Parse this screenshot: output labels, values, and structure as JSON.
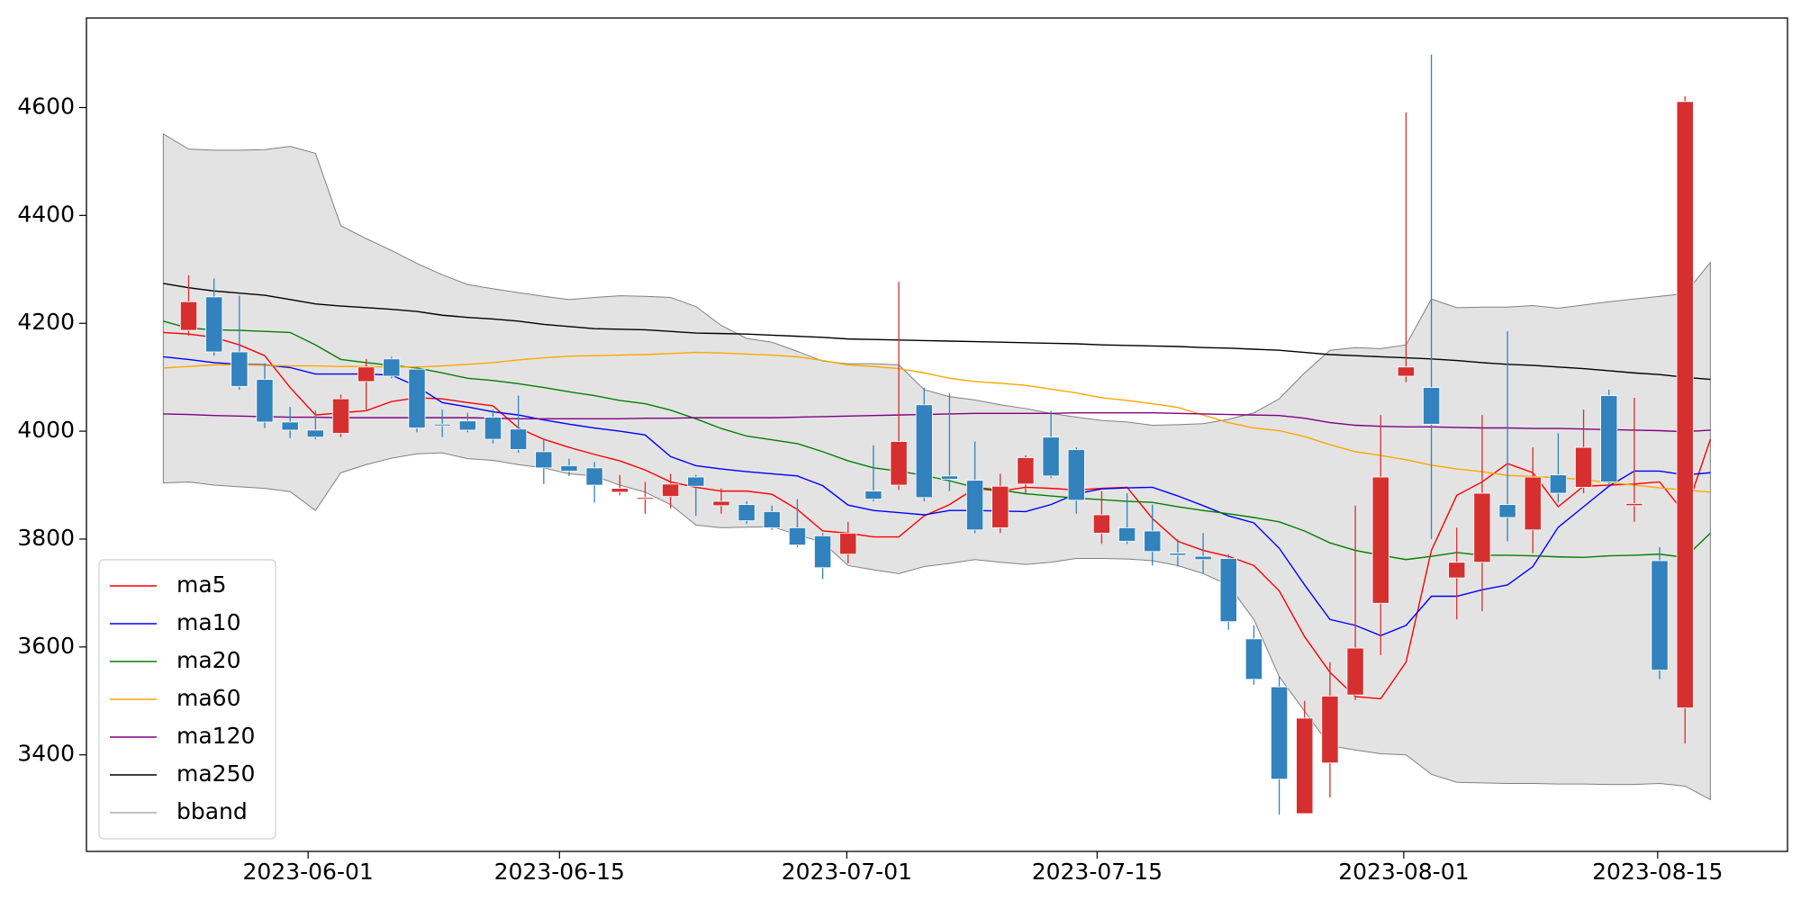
{
  "chart_data": {
    "type": "candlestick",
    "categories": [
      null,
      null,
      null,
      null,
      null,
      null,
      null,
      null,
      null,
      null,
      null,
      null,
      null,
      null,
      null,
      null,
      null,
      null,
      null,
      null,
      null,
      null,
      null,
      null,
      null,
      null,
      null,
      null,
      null,
      null,
      null,
      null,
      null,
      null,
      null,
      null,
      null,
      null,
      null,
      null,
      null,
      null,
      null,
      null,
      null,
      null,
      null,
      null,
      null,
      null,
      null,
      null,
      null,
      null,
      null,
      null,
      null,
      null,
      null,
      null,
      null,
      null
    ],
    "xlim": [
      -3.03,
      64.04
    ],
    "xticks": [
      {
        "value": 5.71,
        "label": "2023-06-01"
      },
      {
        "value": 15.62,
        "label": "2023-06-15"
      },
      {
        "value": 26.95,
        "label": "2023-07-01"
      },
      {
        "value": 36.82,
        "label": "2023-07-15"
      },
      {
        "value": 48.91,
        "label": "2023-08-01"
      },
      {
        "value": 58.92,
        "label": "2023-08-15"
      }
    ],
    "ylim": [
      3221,
      4766
    ],
    "yticks": [
      3400,
      3600,
      3800,
      4000,
      4200,
      4400,
      4600
    ],
    "up_color": "#d62f2f",
    "down_color": "#3182bd",
    "candles": {
      "open": [
        null,
        4187,
        4249,
        4147,
        4096,
        4017,
        4002,
        3996,
        4092,
        4134,
        4115,
        4013,
        4019,
        4026,
        4004,
        3962,
        3936,
        3932,
        3887,
        3874,
        3879,
        3915,
        3862,
        3864,
        3851,
        3821,
        3806,
        3772,
        3889,
        3900,
        4049,
        3917,
        3909,
        3821,
        3902,
        3989,
        3966,
        3811,
        3821,
        3815,
        3774,
        3768,
        3764,
        3615,
        3526,
        3291,
        3385,
        3511,
        3681,
        4102,
        4081,
        3728,
        3757,
        3864,
        3817,
        3919,
        3896,
        4066,
        3862,
        3760,
        3487,
        null
      ],
      "high": [
        null,
        4289,
        4283,
        4251,
        4126,
        4045,
        4038,
        4068,
        4134,
        4138,
        4119,
        4040,
        4034,
        4040,
        4066,
        3987,
        3949,
        3943,
        3919,
        3906,
        3921,
        3919,
        3894,
        3870,
        3862,
        3874,
        3811,
        3832,
        3974,
        4277,
        4081,
        4070,
        3981,
        3921,
        3955,
        4038,
        3970,
        3889,
        3885,
        3864,
        3800,
        3811,
        3772,
        3640,
        3545,
        3500,
        3572,
        3862,
        4030,
        4591,
        4698,
        3821,
        4030,
        4185,
        3970,
        3996,
        4040,
        4077,
        4062,
        3785,
        4621,
        null
      ],
      "low": [
        null,
        4177,
        4140,
        4077,
        4006,
        3987,
        3985,
        3989,
        4040,
        4098,
        3998,
        3989,
        3998,
        3977,
        3960,
        3902,
        3917,
        3868,
        3881,
        3847,
        3857,
        3843,
        3847,
        3828,
        3817,
        3785,
        3726,
        3755,
        3870,
        3891,
        3870,
        3889,
        3811,
        3811,
        3885,
        3913,
        3847,
        3791,
        3791,
        3751,
        3749,
        3736,
        3632,
        3530,
        3289,
        3291,
        3321,
        3502,
        3585,
        4091,
        3800,
        3651,
        3666,
        3796,
        3774,
        3868,
        3885,
        3902,
        3832,
        3540,
        3421,
        null
      ],
      "close": [
        null,
        4240,
        4147,
        4083,
        4017,
        4002,
        3989,
        4060,
        4119,
        4102,
        4006,
        4010,
        4002,
        3985,
        3966,
        3932,
        3926,
        3900,
        3894,
        3877,
        3902,
        3898,
        3870,
        3834,
        3821,
        3789,
        3747,
        3811,
        3874,
        3981,
        3877,
        3911,
        3817,
        3898,
        3951,
        3917,
        3872,
        3845,
        3796,
        3777,
        3770,
        3762,
        3647,
        3540,
        3355,
        3468,
        3509,
        3598,
        3915,
        4119,
        4013,
        3757,
        3885,
        3840,
        3915,
        3885,
        3970,
        3906,
        3866,
        3557,
        4611,
        null
      ]
    },
    "series": [
      {
        "name": "ma5",
        "color": "#ff0000",
        "values": [
          4183,
          4180,
          4174,
          4160,
          4140,
          4081,
          4030,
          4034,
          4038,
          4055,
          4062,
          4060,
          4053,
          4047,
          4006,
          3985,
          3970,
          3957,
          3945,
          3928,
          3906,
          3896,
          3889,
          3889,
          3883,
          3855,
          3815,
          3811,
          3804,
          3804,
          3843,
          3864,
          3894,
          3889,
          3896,
          3894,
          3891,
          3894,
          3896,
          3838,
          3796,
          3779,
          3768,
          3751,
          3704,
          3619,
          3553,
          3508,
          3504,
          3572,
          3779,
          3881,
          3906,
          3940,
          3923,
          3860,
          3898,
          3900,
          3902,
          3906,
          3847,
          3985
        ]
      },
      {
        "name": "ma10",
        "color": "#0000ff",
        "values": [
          4138,
          4133,
          4127,
          4124,
          4123,
          4118,
          4106,
          4106,
          4106,
          4104,
          4083,
          4053,
          4045,
          4036,
          4030,
          4021,
          4013,
          4006,
          4000,
          3993,
          3953,
          3936,
          3930,
          3925,
          3921,
          3917,
          3899,
          3863,
          3853,
          3849,
          3845,
          3853,
          3853,
          3852,
          3851,
          3864,
          3884,
          3893,
          3895,
          3896,
          3880,
          3862,
          3843,
          3830,
          3783,
          3715,
          3651,
          3640,
          3621,
          3640,
          3694,
          3694,
          3706,
          3715,
          3749,
          3822,
          3860,
          3898,
          3926,
          3926,
          3919,
          3923
        ]
      },
      {
        "name": "ma20",
        "color": "#008000",
        "values": [
          4204,
          4191,
          4188,
          4187,
          4185,
          4183,
          4160,
          4133,
          4127,
          4122,
          4117,
          4108,
          4098,
          4094,
          4088,
          4081,
          4073,
          4066,
          4057,
          4051,
          4039,
          4023,
          4005,
          3991,
          3984,
          3977,
          3962,
          3945,
          3932,
          3926,
          3918,
          3908,
          3896,
          3891,
          3884,
          3880,
          3876,
          3873,
          3870,
          3868,
          3860,
          3853,
          3847,
          3840,
          3832,
          3815,
          3793,
          3779,
          3770,
          3762,
          3768,
          3775,
          3770,
          3770,
          3769,
          3767,
          3766,
          3769,
          3770,
          3772,
          3766,
          3811
        ]
      },
      {
        "name": "ma60",
        "color": "#ffa500",
        "values": [
          4117,
          4120,
          4123,
          4123,
          4122,
          4121,
          4121,
          4120,
          4120,
          4119,
          4119,
          4121,
          4124,
          4127,
          4132,
          4136,
          4139,
          4140,
          4141,
          4142,
          4144,
          4146,
          4145,
          4143,
          4141,
          4138,
          4131,
          4123,
          4120,
          4116,
          4108,
          4098,
          4092,
          4089,
          4085,
          4078,
          4071,
          4062,
          4057,
          4051,
          4044,
          4030,
          4016,
          4006,
          4001,
          3990,
          3975,
          3962,
          3955,
          3947,
          3937,
          3930,
          3925,
          3918,
          3916,
          3914,
          3910,
          3905,
          3900,
          3895,
          3891,
          3887
        ]
      },
      {
        "name": "ma120",
        "color": "#800080",
        "values": [
          4032,
          4031,
          4029,
          4028,
          4027,
          4026,
          4026,
          4025,
          4025,
          4025,
          4025,
          4025,
          4025,
          4024,
          4023,
          4023,
          4023,
          4023,
          4023,
          4024,
          4024,
          4025,
          4025,
          4025,
          4025,
          4026,
          4027,
          4028,
          4029,
          4030,
          4031,
          4032,
          4033,
          4033,
          4033,
          4033,
          4034,
          4034,
          4034,
          4034,
          4033,
          4032,
          4031,
          4030,
          4029,
          4024,
          4016,
          4011,
          4009,
          4008,
          4008,
          4007,
          4006,
          4006,
          4005,
          4005,
          4004,
          4003,
          4002,
          4001,
          3999,
          4002
        ]
      },
      {
        "name": "ma250",
        "color": "#000000",
        "values": [
          4274,
          4266,
          4260,
          4256,
          4252,
          4244,
          4236,
          4232,
          4229,
          4226,
          4222,
          4215,
          4211,
          4208,
          4204,
          4198,
          4194,
          4190,
          4189,
          4188,
          4185,
          4182,
          4181,
          4180,
          4178,
          4176,
          4174,
          4171,
          4170,
          4169,
          4168,
          4167,
          4166,
          4165,
          4164,
          4163,
          4162,
          4160,
          4159,
          4158,
          4157,
          4155,
          4154,
          4152,
          4150,
          4146,
          4142,
          4140,
          4138,
          4136,
          4134,
          4131,
          4127,
          4124,
          4122,
          4119,
          4116,
          4112,
          4108,
          4105,
          4100,
          4096
        ]
      }
    ],
    "band": {
      "name": "bband",
      "color": "#808080",
      "fill": "#e3e3e3",
      "upper": [
        4551,
        4523,
        4521,
        4521,
        4522,
        4528,
        4515,
        4381,
        4357,
        4335,
        4311,
        4290,
        4272,
        4264,
        4257,
        4250,
        4244,
        4248,
        4251,
        4250,
        4248,
        4231,
        4196,
        4172,
        4165,
        4148,
        4130,
        4125,
        4125,
        4123,
        4077,
        4064,
        4058,
        4049,
        4042,
        4033,
        4026,
        4020,
        4017,
        4011,
        4012,
        4014,
        4022,
        4034,
        4060,
        4108,
        4150,
        4155,
        4153,
        4160,
        4245,
        4229,
        4230,
        4230,
        4233,
        4228,
        4234,
        4240,
        4245,
        4250,
        4255,
        4313
      ],
      "lower": [
        3904,
        3906,
        3900,
        3897,
        3894,
        3888,
        3853,
        3923,
        3938,
        3950,
        3958,
        3960,
        3949,
        3946,
        3938,
        3932,
        3921,
        3917,
        3900,
        3887,
        3864,
        3826,
        3821,
        3822,
        3823,
        3808,
        3794,
        3751,
        3743,
        3736,
        3749,
        3755,
        3762,
        3757,
        3753,
        3757,
        3764,
        3764,
        3763,
        3760,
        3751,
        3736,
        3715,
        3651,
        3545,
        3481,
        3417,
        3409,
        3402,
        3400,
        3364,
        3349,
        3348,
        3347,
        3347,
        3346,
        3346,
        3345,
        3345,
        3347,
        3342,
        3317
      ]
    },
    "legend": "lower left"
  }
}
